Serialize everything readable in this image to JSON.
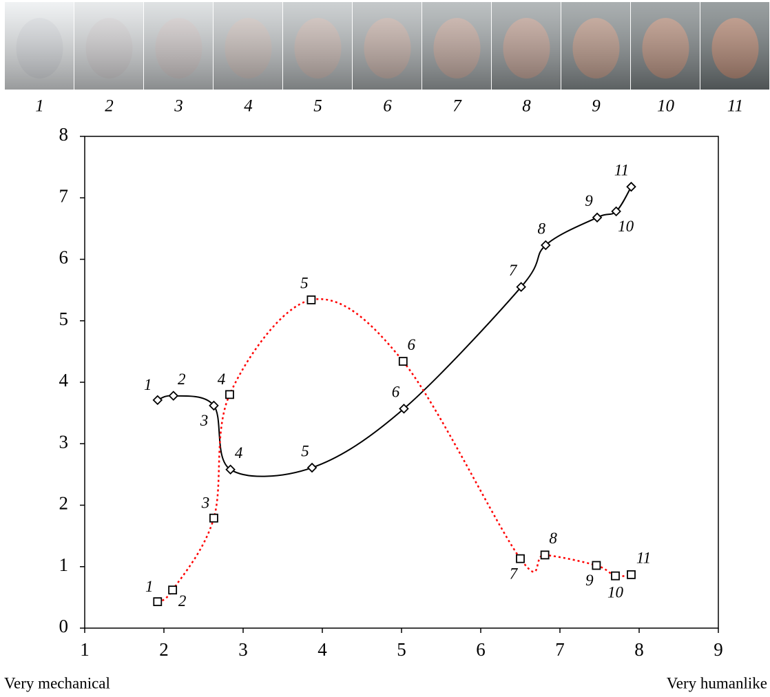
{
  "chart_data": {
    "type": "line",
    "categories": [
      "1",
      "2",
      "3",
      "4",
      "5",
      "6",
      "7",
      "8",
      "9",
      "10",
      "11"
    ],
    "x_label_left": "Very mechanical",
    "x_label_right": "Very humanlike",
    "xlim": [
      1,
      9
    ],
    "xticks": [
      1,
      2,
      3,
      4,
      5,
      6,
      7,
      8,
      9
    ],
    "ylim": [
      0,
      8
    ],
    "yticks": [
      0,
      1,
      2,
      3,
      4,
      5,
      6,
      7,
      8
    ],
    "series": [
      {
        "color": "#000000",
        "marker": "diamond",
        "dash": "solid",
        "x": [
          1.92,
          2.12,
          2.63,
          2.84,
          3.87,
          5.03,
          6.51,
          6.82,
          7.47,
          7.71,
          7.9
        ],
        "values": [
          3.71,
          3.78,
          3.62,
          2.58,
          2.61,
          3.57,
          5.55,
          6.23,
          6.68,
          6.78,
          7.18
        ]
      },
      {
        "color": "#ff0000",
        "marker": "square",
        "dash": "dotted",
        "x": [
          1.92,
          2.11,
          2.63,
          2.83,
          3.86,
          5.02,
          6.5,
          6.81,
          7.46,
          7.7,
          7.9
        ],
        "values": [
          0.43,
          0.62,
          1.79,
          3.8,
          5.34,
          4.34,
          1.13,
          1.19,
          1.02,
          0.85,
          0.87
        ]
      }
    ]
  }
}
